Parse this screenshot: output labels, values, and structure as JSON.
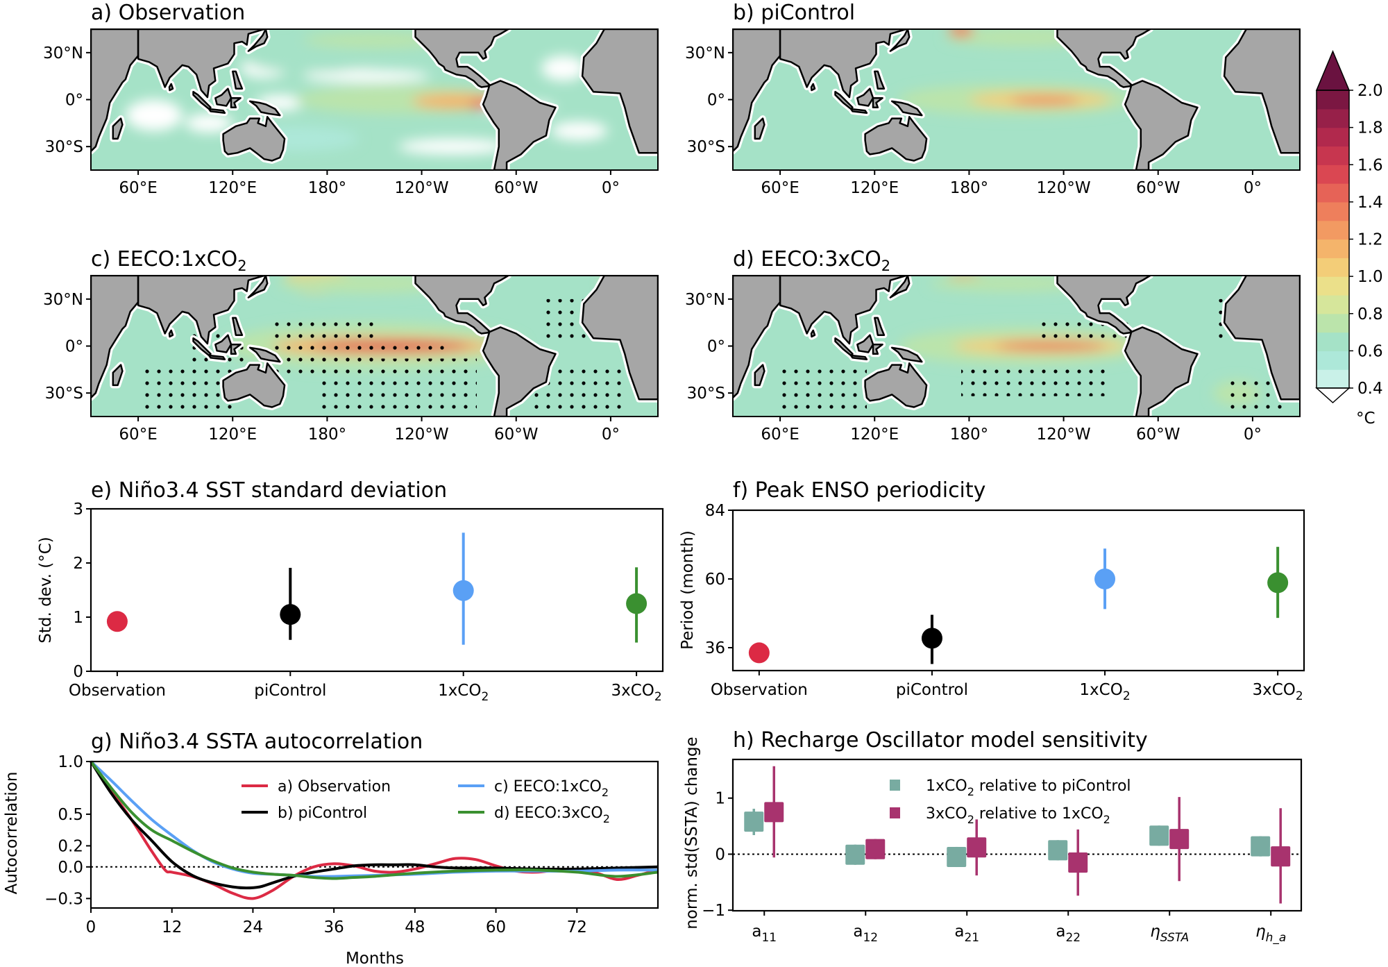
{
  "maps": {
    "panels": [
      {
        "id": "a",
        "title": "a) Observation",
        "pattern": "obs",
        "stippled": false
      },
      {
        "id": "b",
        "title": "b) piControl",
        "pattern": "pi",
        "stippled": false
      },
      {
        "id": "c",
        "title_main": "c) EECO:1xCO",
        "title_sub": "2",
        "pattern": "x1",
        "stippled": true
      },
      {
        "id": "d",
        "title_main": "d) EECO:3xCO",
        "title_sub": "2",
        "pattern": "x3",
        "stippled": true
      }
    ],
    "lat_ticks": [
      "30°N",
      "0°",
      "30°S"
    ],
    "lon_ticks": [
      "60°E",
      "120°E",
      "180°",
      "120°W",
      "60°W",
      "0°"
    ],
    "land_color": "#a6a6a6",
    "colorbar": {
      "ticks": [
        "0.4",
        "0.6",
        "0.8",
        "1.0",
        "1.2",
        "1.4",
        "1.6",
        "1.8",
        "2.0"
      ],
      "unit": "°C",
      "min": 0.4,
      "max": 2.0,
      "step": 0.1,
      "colors": [
        "#c9f1e8",
        "#ade8d9",
        "#a5e2c7",
        "#bbe4ab",
        "#d6e69b",
        "#ebe08a",
        "#f3cd78",
        "#f4b46b",
        "#f29a62",
        "#ee7f5c",
        "#e66357",
        "#da4752",
        "#c7364f",
        "#b1294d",
        "#972049",
        "#7b1742"
      ],
      "over_color": "#6a1240",
      "under_color": "#ffffff"
    }
  },
  "chart_data": [
    {
      "id": "e",
      "type": "scatter",
      "title": "e) Niño3.4 SST standard deviation",
      "ylabel": "Std. dev. (°C)",
      "categories": [
        {
          "main": "Observation",
          "sub": ""
        },
        {
          "main": "piControl",
          "sub": ""
        },
        {
          "main": "1xCO",
          "sub": "2"
        },
        {
          "main": "3xCO",
          "sub": "2"
        }
      ],
      "values": [
        0.92,
        1.05,
        1.49,
        1.25
      ],
      "error_low": [
        null,
        0.58,
        0.49,
        0.53
      ],
      "error_high": [
        null,
        1.91,
        2.56,
        1.92
      ],
      "colors": [
        "#dc2a44",
        "#000000",
        "#5aa0f5",
        "#3a9030"
      ],
      "ylim": [
        0,
        3
      ],
      "yticks": [
        "0",
        "1",
        "2",
        "3"
      ],
      "ytick_values": [
        0,
        1,
        2,
        3
      ]
    },
    {
      "id": "f",
      "type": "scatter",
      "title": "f) Peak ENSO periodicity",
      "ylabel": "Period (month)",
      "categories": [
        {
          "main": "Observation",
          "sub": ""
        },
        {
          "main": "piControl",
          "sub": ""
        },
        {
          "main": "1xCO",
          "sub": "2"
        },
        {
          "main": "3xCO",
          "sub": "2"
        }
      ],
      "values": [
        34.2,
        39.3,
        60.0,
        58.7
      ],
      "error_low": [
        null,
        30.3,
        49.5,
        46.4
      ],
      "error_high": [
        null,
        47.5,
        70.6,
        71.2
      ],
      "colors": [
        "#dc2a44",
        "#000000",
        "#5aa0f5",
        "#3a9030"
      ],
      "ylim": [
        28,
        84
      ],
      "yticks": [
        "36",
        "60",
        "84"
      ],
      "ytick_values": [
        36,
        60,
        84
      ]
    },
    {
      "id": "g",
      "type": "line",
      "title": "g) Niño3.4 SSTA autocorrelation",
      "xlabel": "Months",
      "ylabel": "Autocorrelation",
      "xlim": [
        0,
        84
      ],
      "ylim": [
        -0.39,
        1.0
      ],
      "xticks": [
        "0",
        "12",
        "24",
        "36",
        "48",
        "60",
        "72"
      ],
      "xtick_values": [
        0,
        12,
        24,
        36,
        48,
        60,
        72
      ],
      "yticks": [
        "1.0",
        "0.5",
        "0.2",
        "0.0",
        "−0.3"
      ],
      "ytick_values": [
        1.0,
        0.5,
        0.2,
        0.0,
        -0.3
      ],
      "legend_position": "top-right",
      "series": [
        {
          "name_main": "a) Observation",
          "name_sub": "",
          "color": "#dc2a44",
          "x": [
            0,
            3,
            6,
            9,
            11,
            12,
            15,
            18,
            21,
            24,
            27,
            30,
            33,
            36,
            39,
            42,
            45,
            48,
            51,
            54,
            57,
            60,
            63,
            66,
            69,
            72,
            75,
            78,
            81,
            84
          ],
          "y": [
            1.0,
            0.72,
            0.45,
            0.15,
            -0.03,
            -0.05,
            -0.09,
            -0.16,
            -0.25,
            -0.3,
            -0.22,
            -0.09,
            0.0,
            0.03,
            0.01,
            -0.04,
            -0.05,
            -0.02,
            0.03,
            0.08,
            0.07,
            0.01,
            -0.04,
            -0.05,
            -0.03,
            -0.03,
            -0.06,
            -0.12,
            -0.08,
            -0.03
          ]
        },
        {
          "name_main": "b) piControl",
          "name_sub": "",
          "color": "#000000",
          "x": [
            0,
            3,
            6,
            9,
            12,
            15,
            18,
            21,
            23,
            25,
            27,
            30,
            33,
            36,
            39,
            42,
            45,
            48,
            51,
            54,
            57,
            60,
            66,
            72,
            78,
            84
          ],
          "y": [
            1.0,
            0.7,
            0.45,
            0.25,
            0.05,
            -0.08,
            -0.15,
            -0.19,
            -0.2,
            -0.19,
            -0.15,
            -0.09,
            -0.05,
            -0.02,
            0.01,
            0.02,
            0.02,
            0.02,
            0.0,
            -0.01,
            -0.01,
            -0.01,
            -0.02,
            -0.02,
            -0.01,
            0.0
          ]
        },
        {
          "name_main": "c) EECO:1xCO",
          "name_sub": "2",
          "color": "#5aa0f5",
          "x": [
            0,
            3,
            6,
            9,
            12,
            15,
            18,
            21,
            24,
            27,
            30,
            33,
            36,
            42,
            48,
            54,
            60,
            66,
            72,
            78,
            84
          ],
          "y": [
            1.0,
            0.82,
            0.63,
            0.45,
            0.3,
            0.16,
            0.05,
            -0.02,
            -0.06,
            -0.07,
            -0.08,
            -0.09,
            -0.09,
            -0.08,
            -0.07,
            -0.05,
            -0.04,
            -0.04,
            -0.04,
            -0.03,
            -0.03
          ]
        },
        {
          "name_main": "d) EECO:3xCO",
          "name_sub": "2",
          "color": "#3a9030",
          "x": [
            0,
            3,
            6,
            9,
            12,
            15,
            18,
            21,
            24,
            27,
            30,
            33,
            36,
            39,
            42,
            48,
            54,
            60,
            66,
            72,
            78,
            84
          ],
          "y": [
            1.0,
            0.75,
            0.52,
            0.35,
            0.25,
            0.15,
            0.06,
            -0.01,
            -0.05,
            -0.07,
            -0.08,
            -0.1,
            -0.11,
            -0.1,
            -0.09,
            -0.06,
            -0.04,
            -0.03,
            -0.03,
            -0.05,
            -0.09,
            -0.05
          ]
        }
      ]
    },
    {
      "id": "h",
      "type": "box",
      "title": "h) Recharge Oscillator model sensitivity",
      "ylabel": "norm. std(SSTA) change",
      "categories": [
        {
          "main": "a",
          "sub": "11",
          "italic": false
        },
        {
          "main": "a",
          "sub": "12",
          "italic": false
        },
        {
          "main": "a",
          "sub": "21",
          "italic": false
        },
        {
          "main": "a",
          "sub": "22",
          "italic": false
        },
        {
          "main": "η",
          "sub": "SSTA",
          "italic": true
        },
        {
          "main": "η",
          "sub": "h_a",
          "italic": true
        }
      ],
      "ylim": [
        -1.01,
        1.69
      ],
      "yticks": [
        "1",
        "0",
        "−1"
      ],
      "ytick_values": [
        1,
        0,
        -1
      ],
      "legend_position": "top-center",
      "series": [
        {
          "name_main": "1xCO",
          "name_sub": "2",
          "name_rest": " relative to piControl",
          "color": "#78aba1",
          "values": [
            0.59,
            -0.01,
            -0.05,
            0.07,
            0.33,
            0.14
          ],
          "box_low": [
            0.4,
            -0.19,
            -0.23,
            -0.11,
            0.15,
            -0.04
          ],
          "box_high": [
            0.76,
            0.17,
            0.13,
            0.25,
            0.51,
            0.32
          ],
          "whisker_low": [
            0.34,
            -0.19,
            -0.23,
            -0.11,
            0.15,
            -0.04
          ],
          "whisker_high": [
            0.81,
            0.17,
            0.13,
            0.25,
            0.51,
            0.32
          ]
        },
        {
          "name_main": "3xCO",
          "name_sub": "2",
          "name_rest": " relative to 1xCO",
          "name_sub2": "2",
          "color": "#a8336e",
          "values": [
            0.75,
            0.09,
            0.12,
            -0.15,
            0.27,
            -0.04
          ],
          "box_low": [
            0.57,
            -0.09,
            -0.06,
            -0.33,
            0.09,
            -0.22
          ],
          "box_high": [
            0.93,
            0.27,
            0.3,
            0.03,
            0.45,
            0.14
          ],
          "whisker_low": [
            -0.06,
            -0.09,
            -0.38,
            -0.74,
            -0.48,
            -0.88
          ],
          "whisker_high": [
            1.57,
            0.27,
            0.62,
            0.44,
            1.02,
            0.82
          ]
        }
      ]
    }
  ]
}
